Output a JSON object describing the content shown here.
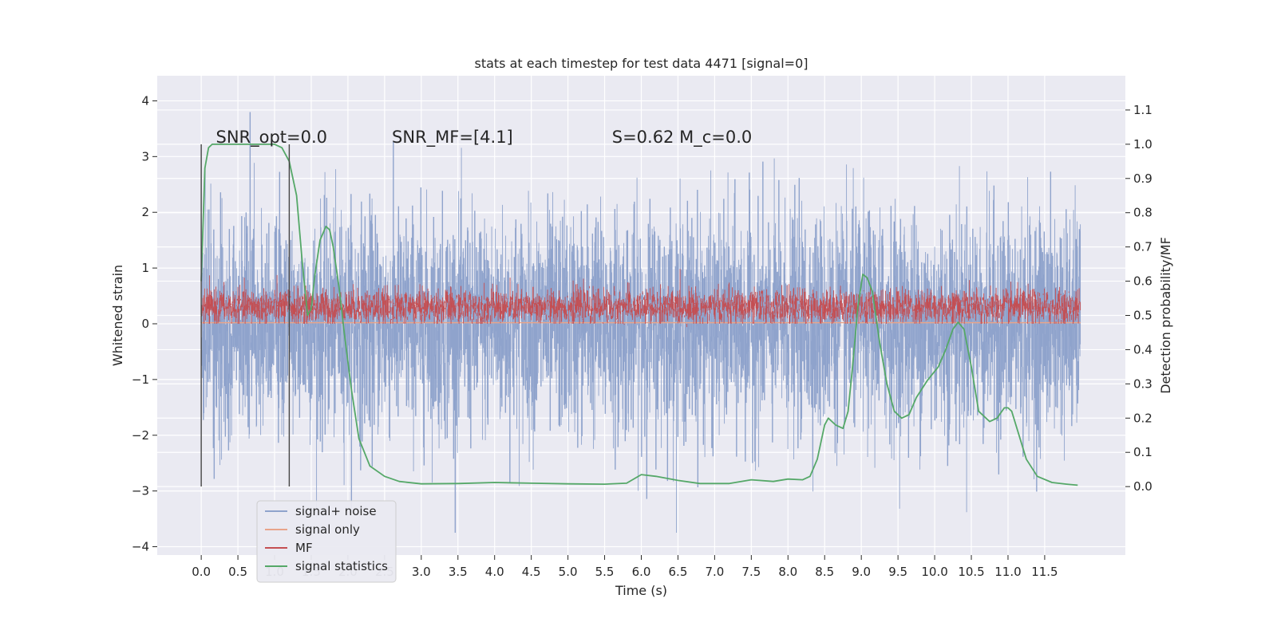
{
  "chart_data": {
    "type": "line",
    "title": "stats at each timestep for test data 4471 [signal=0]",
    "xlabel": "Time (s)",
    "ylabel_left": "Whitened strain",
    "ylabel_right": "Detection probability/MF",
    "xlim": [
      -0.6,
      12.6
    ],
    "ylim_left": [
      -4.15,
      4.45
    ],
    "ylim_right": [
      -0.2,
      1.2
    ],
    "xticks": [
      0.0,
      0.5,
      1.0,
      1.5,
      2.0,
      2.5,
      3.0,
      3.5,
      4.0,
      4.5,
      5.0,
      5.5,
      6.0,
      6.5,
      7.0,
      7.5,
      8.0,
      8.5,
      9.0,
      9.5,
      10.0,
      10.5,
      11.0,
      11.5
    ],
    "xtick_labels": [
      "0.0",
      "0.5",
      "1.0",
      "1.5",
      "2.0",
      "2.5",
      "3.0",
      "3.5",
      "4.0",
      "4.5",
      "5.0",
      "5.5",
      "6.0",
      "6.5",
      "7.0",
      "7.5",
      "8.0",
      "8.5",
      "9.0",
      "9.5",
      "10.0",
      "10.5",
      "11.0",
      "11.5"
    ],
    "yticks_left": [
      -4,
      -3,
      -2,
      -1,
      0,
      1,
      2,
      3,
      4
    ],
    "ytick_labels_left": [
      "−4",
      "−3",
      "−2",
      "−1",
      "0",
      "1",
      "2",
      "3",
      "4"
    ],
    "yticks_right": [
      0.0,
      0.1,
      0.2,
      0.3,
      0.4,
      0.5,
      0.6,
      0.7,
      0.8,
      0.9,
      1.0,
      1.1
    ],
    "ytick_labels_right": [
      "0.0",
      "0.1",
      "0.2",
      "0.3",
      "0.4",
      "0.5",
      "0.6",
      "0.7",
      "0.8",
      "0.9",
      "1.0",
      "1.1"
    ],
    "grid": true,
    "legend_placement": "lower-left",
    "annotations": [
      {
        "text": "SNR_opt=0.0",
        "x": 0.2,
        "y": 3.25
      },
      {
        "text": "SNR_MF=[4.1]",
        "x": 2.6,
        "y": 3.25
      },
      {
        "text": "S=0.62   M_c=0.0",
        "x": 5.6,
        "y": 3.25
      }
    ],
    "vlines": [
      {
        "x": 0.0,
        "ymin": -2.92,
        "ymax": 3.22
      },
      {
        "x": 1.2,
        "ymin": -2.92,
        "ymax": 3.22
      }
    ],
    "series": [
      {
        "name": "signal+ noise",
        "axis": "left",
        "color": "#8fa3cc",
        "kind": "noise",
        "x_range": [
          0.0,
          11.99
        ],
        "typical_range": [
          -1.6,
          1.6
        ],
        "extremes": [
          -3.75,
          4.1
        ]
      },
      {
        "name": "signal only",
        "axis": "left",
        "color": "#e8a48a",
        "x": [
          0.0,
          11.99
        ],
        "y": [
          0.02,
          0.02
        ]
      },
      {
        "name": "MF",
        "axis": "left",
        "color": "#c44e52",
        "kind": "noise",
        "x_range": [
          0.0,
          11.99
        ],
        "typical_range": [
          0.0,
          0.62
        ],
        "extremes": [
          0.0,
          1.0
        ]
      },
      {
        "name": "signal statistics",
        "axis": "right",
        "color": "#55a868",
        "x": [
          0.0,
          0.05,
          0.1,
          0.15,
          0.2,
          0.3,
          0.5,
          0.8,
          1.0,
          1.1,
          1.2,
          1.3,
          1.38,
          1.45,
          1.5,
          1.55,
          1.62,
          1.7,
          1.75,
          1.8,
          1.88,
          1.95,
          2.05,
          2.15,
          2.3,
          2.5,
          2.7,
          3.0,
          3.5,
          4.0,
          4.5,
          5.0,
          5.5,
          5.8,
          6.0,
          6.2,
          6.5,
          6.8,
          7.2,
          7.5,
          7.8,
          8.0,
          8.2,
          8.3,
          8.4,
          8.5,
          8.55,
          8.65,
          8.75,
          8.82,
          8.88,
          8.95,
          9.02,
          9.08,
          9.15,
          9.25,
          9.35,
          9.45,
          9.55,
          9.65,
          9.75,
          9.9,
          10.05,
          10.15,
          10.25,
          10.32,
          10.4,
          10.5,
          10.6,
          10.75,
          10.85,
          10.95,
          11.0,
          11.05,
          11.15,
          11.25,
          11.4,
          11.6,
          11.8,
          11.95
        ],
        "y": [
          0.6,
          0.93,
          0.99,
          1.0,
          1.0,
          1.0,
          1.0,
          1.0,
          1.0,
          0.99,
          0.95,
          0.85,
          0.65,
          0.5,
          0.52,
          0.62,
          0.72,
          0.76,
          0.75,
          0.7,
          0.58,
          0.45,
          0.28,
          0.14,
          0.06,
          0.03,
          0.015,
          0.008,
          0.009,
          0.012,
          0.01,
          0.008,
          0.007,
          0.01,
          0.035,
          0.03,
          0.018,
          0.009,
          0.009,
          0.02,
          0.015,
          0.022,
          0.02,
          0.03,
          0.08,
          0.18,
          0.2,
          0.18,
          0.17,
          0.22,
          0.35,
          0.52,
          0.62,
          0.61,
          0.57,
          0.42,
          0.3,
          0.22,
          0.2,
          0.21,
          0.26,
          0.31,
          0.35,
          0.4,
          0.46,
          0.48,
          0.46,
          0.35,
          0.22,
          0.19,
          0.2,
          0.23,
          0.23,
          0.22,
          0.15,
          0.08,
          0.03,
          0.012,
          0.007,
          0.004
        ]
      }
    ]
  }
}
